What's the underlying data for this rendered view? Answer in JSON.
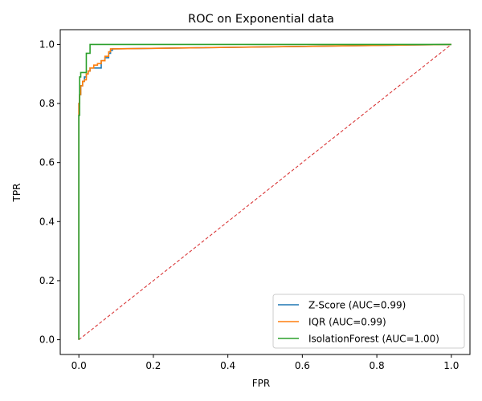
{
  "chart_data": {
    "type": "line",
    "title": "ROC on Exponential data",
    "xlabel": "FPR",
    "ylabel": "TPR",
    "xlim": [
      -0.05,
      1.05
    ],
    "ylim": [
      -0.05,
      1.05
    ],
    "xticks": [
      0.0,
      0.2,
      0.4,
      0.6,
      0.8,
      1.0
    ],
    "yticks": [
      0.0,
      0.2,
      0.4,
      0.6,
      0.8,
      1.0
    ],
    "xtick_labels": [
      "0.0",
      "0.2",
      "0.4",
      "0.6",
      "0.8",
      "1.0"
    ],
    "ytick_labels": [
      "0.0",
      "0.2",
      "0.4",
      "0.6",
      "0.8",
      "1.0"
    ],
    "grid": false,
    "legend": "lower-right",
    "series": [
      {
        "name": "Z-Score (AUC=0.99)",
        "color": "#1f77b4",
        "x": [
          0.0,
          0.0,
          0.002,
          0.002,
          0.005,
          0.005,
          0.01,
          0.01,
          0.015,
          0.015,
          0.02,
          0.02,
          0.025,
          0.025,
          0.03,
          0.03,
          0.04,
          0.04,
          0.06,
          0.06,
          0.07,
          0.07,
          0.08,
          0.08,
          0.085,
          0.085,
          0.09,
          0.09,
          1.0
        ],
        "y": [
          0.0,
          0.8,
          0.8,
          0.83,
          0.83,
          0.86,
          0.86,
          0.875,
          0.875,
          0.89,
          0.89,
          0.9,
          0.9,
          0.91,
          0.91,
          0.92,
          0.92,
          0.92,
          0.92,
          0.945,
          0.945,
          0.955,
          0.955,
          0.97,
          0.97,
          0.98,
          0.98,
          0.985,
          1.0
        ]
      },
      {
        "name": "IQR (AUC=0.99)",
        "color": "#ff7f0e",
        "x": [
          0.0,
          0.0,
          0.002,
          0.002,
          0.005,
          0.005,
          0.01,
          0.01,
          0.015,
          0.015,
          0.02,
          0.02,
          0.025,
          0.025,
          0.03,
          0.03,
          0.04,
          0.04,
          0.05,
          0.05,
          0.06,
          0.06,
          0.07,
          0.07,
          0.08,
          0.08,
          0.085,
          0.085,
          0.09,
          0.09,
          1.0
        ],
        "y": [
          0.0,
          0.8,
          0.8,
          0.83,
          0.83,
          0.86,
          0.86,
          0.875,
          0.875,
          0.88,
          0.88,
          0.9,
          0.9,
          0.91,
          0.91,
          0.92,
          0.92,
          0.93,
          0.93,
          0.935,
          0.935,
          0.945,
          0.945,
          0.96,
          0.96,
          0.975,
          0.975,
          0.985,
          0.985,
          0.985,
          1.0
        ]
      },
      {
        "name": "IsolationForest (AUC=1.00)",
        "color": "#2ca02c",
        "x": [
          0.0,
          0.0,
          0.002,
          0.002,
          0.005,
          0.005,
          0.02,
          0.02,
          0.03,
          0.03,
          0.1,
          1.0
        ],
        "y": [
          0.0,
          0.76,
          0.76,
          0.89,
          0.89,
          0.905,
          0.905,
          0.97,
          0.97,
          1.0,
          1.0,
          1.0
        ]
      }
    ],
    "diagonal": {
      "color": "#d62728",
      "style": "dashed",
      "x": [
        0.0,
        1.0
      ],
      "y": [
        0.0,
        1.0
      ]
    }
  }
}
